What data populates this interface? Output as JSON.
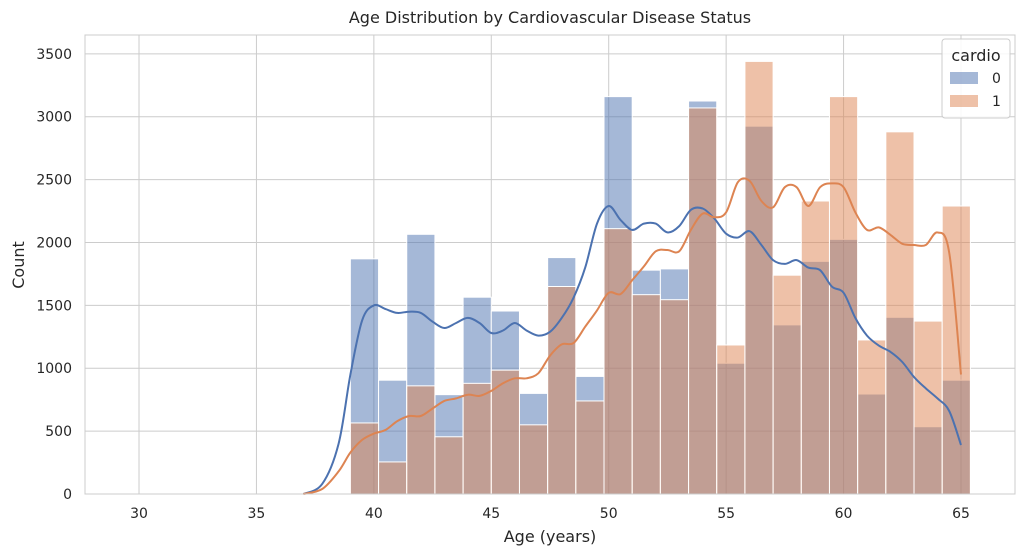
{
  "chart_data": {
    "type": "histogram",
    "title": "Age Distribution by Cardiovascular Disease Status",
    "xlabel": "Age (years)",
    "ylabel": "Count",
    "xlim": [
      27.7,
      67.3
    ],
    "ylim": [
      0,
      3650
    ],
    "x_ticks": [
      30,
      35,
      40,
      45,
      50,
      55,
      60,
      65
    ],
    "y_ticks": [
      0,
      500,
      1000,
      1500,
      2000,
      2500,
      3000,
      3500
    ],
    "grid": true,
    "legend": {
      "title": "cardio",
      "placement": "top-right"
    },
    "bin_edges": [
      39.0,
      40.2,
      41.4,
      42.6,
      43.8,
      45.0,
      46.2,
      47.4,
      48.6,
      49.8,
      51.0,
      52.2,
      53.4,
      54.6,
      55.8,
      57.0,
      58.2,
      59.4,
      60.6,
      61.8,
      63.0,
      64.2,
      65.4
    ],
    "series": [
      {
        "name": "0",
        "color": "#4c72b0",
        "counts": [
          1870,
          905,
          2065,
          790,
          1565,
          1455,
          800,
          1880,
          935,
          3160,
          1780,
          1790,
          3125,
          1040,
          2925,
          1345,
          1850,
          2025,
          795,
          1405,
          535,
          905
        ],
        "kde_x": [
          37.0,
          37.8,
          38.5,
          39.0,
          39.5,
          40.0,
          40.5,
          41.0,
          41.5,
          42.0,
          42.5,
          43.0,
          43.5,
          44.0,
          44.5,
          45.0,
          45.5,
          46.0,
          46.5,
          47.0,
          47.5,
          48.0,
          48.5,
          49.0,
          49.5,
          50.0,
          50.5,
          51.0,
          51.5,
          52.0,
          52.5,
          53.0,
          53.5,
          54.0,
          54.5,
          55.0,
          55.5,
          56.0,
          56.5,
          57.0,
          57.5,
          58.0,
          58.5,
          59.0,
          59.5,
          60.0,
          60.5,
          61.0,
          61.5,
          62.0,
          62.5,
          63.0,
          63.5,
          64.0,
          64.5,
          65.0
        ],
        "kde_y": [
          0,
          80,
          400,
          950,
          1380,
          1500,
          1470,
          1440,
          1450,
          1440,
          1370,
          1320,
          1360,
          1400,
          1360,
          1280,
          1300,
          1360,
          1300,
          1260,
          1290,
          1400,
          1560,
          1800,
          2150,
          2290,
          2180,
          2100,
          2150,
          2150,
          2080,
          2130,
          2260,
          2270,
          2190,
          2070,
          2040,
          2090,
          1980,
          1860,
          1830,
          1860,
          1800,
          1780,
          1650,
          1600,
          1400,
          1260,
          1180,
          1130,
          1050,
          930,
          840,
          760,
          660,
          390
        ]
      },
      {
        "name": "1",
        "color": "#dd8452",
        "counts": [
          565,
          255,
          860,
          455,
          880,
          985,
          550,
          1650,
          740,
          2110,
          1585,
          1545,
          3070,
          1185,
          3440,
          1740,
          2330,
          3160,
          1225,
          2880,
          1375,
          2290
        ],
        "kde_x": [
          37.0,
          37.8,
          38.5,
          39.0,
          39.5,
          40.0,
          40.5,
          41.0,
          41.5,
          42.0,
          42.5,
          43.0,
          43.5,
          44.0,
          44.5,
          45.0,
          45.5,
          46.0,
          46.5,
          47.0,
          47.5,
          48.0,
          48.5,
          49.0,
          49.5,
          50.0,
          50.5,
          51.0,
          51.5,
          52.0,
          52.5,
          53.0,
          53.5,
          54.0,
          54.5,
          55.0,
          55.5,
          56.0,
          56.5,
          57.0,
          57.5,
          58.0,
          58.5,
          59.0,
          59.5,
          60.0,
          60.5,
          61.0,
          61.5,
          62.0,
          62.5,
          63.0,
          63.5,
          64.0,
          64.5,
          65.0
        ],
        "kde_y": [
          0,
          40,
          180,
          330,
          430,
          480,
          510,
          580,
          620,
          620,
          680,
          740,
          760,
          790,
          780,
          820,
          880,
          920,
          920,
          960,
          1100,
          1190,
          1200,
          1330,
          1460,
          1600,
          1590,
          1700,
          1810,
          1930,
          1940,
          1930,
          2100,
          2230,
          2200,
          2240,
          2480,
          2490,
          2330,
          2280,
          2440,
          2440,
          2290,
          2440,
          2470,
          2440,
          2240,
          2100,
          2120,
          2060,
          1990,
          1980,
          1980,
          2080,
          1920,
          950
        ]
      }
    ]
  }
}
